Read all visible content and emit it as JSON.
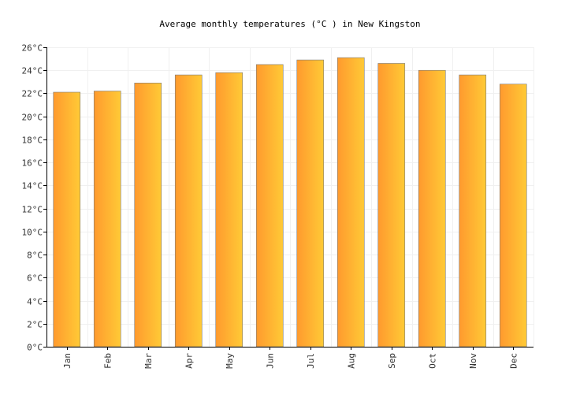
{
  "chart_data": {
    "type": "bar",
    "title": "Average monthly temperatures (°C ) in New Kingston",
    "xlabel": "",
    "ylabel": "",
    "categories": [
      "Jan",
      "Feb",
      "Mar",
      "Apr",
      "May",
      "Jun",
      "Jul",
      "Aug",
      "Sep",
      "Oct",
      "Nov",
      "Dec"
    ],
    "values": [
      22.1,
      22.2,
      22.9,
      23.6,
      23.8,
      24.5,
      24.9,
      25.1,
      24.6,
      24.0,
      23.6,
      22.8
    ],
    "ylim": [
      0,
      26
    ],
    "y_ticks": [
      0,
      2,
      4,
      6,
      8,
      10,
      12,
      14,
      16,
      18,
      20,
      22,
      24,
      26
    ],
    "y_tick_labels": [
      "0°C",
      "2°C",
      "4°C",
      "6°C",
      "8°C",
      "10°C",
      "12°C",
      "14°C",
      "16°C",
      "18°C",
      "20°C",
      "22°C",
      "24°C",
      "26°C"
    ],
    "grid": true,
    "colors": {
      "bar_left": "#ff9a2e",
      "bar_right": "#ffca36",
      "bar_outline": "#7a7a7a",
      "grid": "#f0f0f0",
      "axis": "#000000"
    }
  }
}
